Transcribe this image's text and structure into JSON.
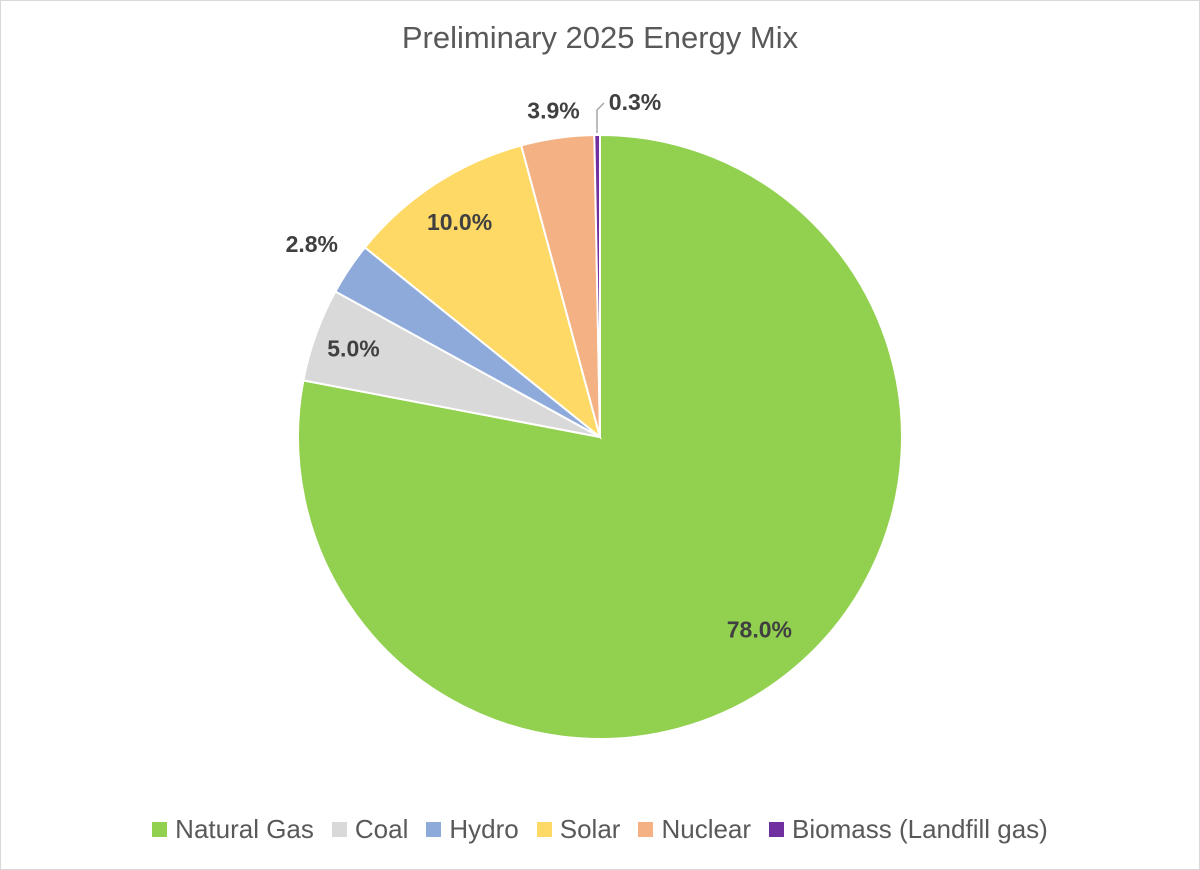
{
  "chart_data": {
    "type": "pie",
    "title": "Preliminary 2025 Energy Mix",
    "start_angle": "top, clockwise",
    "legend_position": "bottom",
    "slices": [
      {
        "name": "Natural Gas",
        "value": 78.0,
        "label": "78.0%",
        "color": "#92d050"
      },
      {
        "name": "Coal",
        "value": 5.0,
        "label": "5.0%",
        "color": "#d9d9d9"
      },
      {
        "name": "Hydro",
        "value": 2.8,
        "label": "2.8%",
        "color": "#8eaadb"
      },
      {
        "name": "Solar",
        "value": 10.0,
        "label": "10.0%",
        "color": "#ffd966"
      },
      {
        "name": "Nuclear",
        "value": 3.9,
        "label": "3.9%",
        "color": "#f4b183"
      },
      {
        "name": "Biomass (Landfill gas)",
        "value": 0.3,
        "label": "0.3%",
        "color": "#7030a0"
      }
    ]
  }
}
